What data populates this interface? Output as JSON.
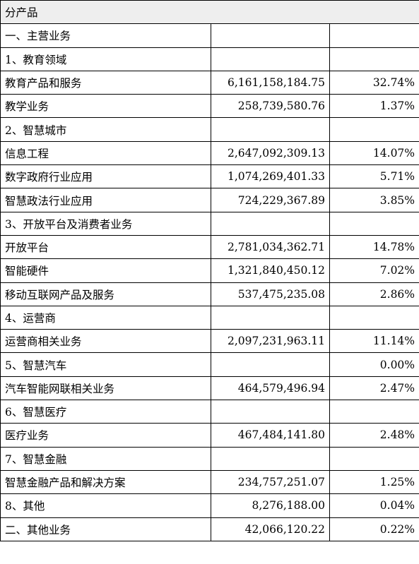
{
  "header": {
    "title": "分产品"
  },
  "rows": [
    {
      "name": "一、主营业务",
      "amount": "",
      "percent": ""
    },
    {
      "name": "1、教育领域",
      "amount": "",
      "percent": ""
    },
    {
      "name": "教育产品和服务",
      "amount": "6,161,158,184.75",
      "percent": "32.74%"
    },
    {
      "name": "教学业务",
      "amount": "258,739,580.76",
      "percent": "1.37%"
    },
    {
      "name": "2、智慧城市",
      "amount": "",
      "percent": ""
    },
    {
      "name": "信息工程",
      "amount": "2,647,092,309.13",
      "percent": "14.07%"
    },
    {
      "name": "数字政府行业应用",
      "amount": "1,074,269,401.33",
      "percent": "5.71%"
    },
    {
      "name": "智慧政法行业应用",
      "amount": "724,229,367.89",
      "percent": "3.85%"
    },
    {
      "name": "3、开放平台及消费者业务",
      "amount": "",
      "percent": ""
    },
    {
      "name": "开放平台",
      "amount": "2,781,034,362.71",
      "percent": "14.78%"
    },
    {
      "name": "智能硬件",
      "amount": "1,321,840,450.12",
      "percent": "7.02%"
    },
    {
      "name": "移动互联网产品及服务",
      "amount": "537,475,235.08",
      "percent": "2.86%"
    },
    {
      "name": "4、运营商",
      "amount": "",
      "percent": ""
    },
    {
      "name": "运营商相关业务",
      "amount": "2,097,231,963.11",
      "percent": "11.14%"
    },
    {
      "name": "5、智慧汽车",
      "amount": "",
      "percent": "0.00%"
    },
    {
      "name": "汽车智能网联相关业务",
      "amount": "464,579,496.94",
      "percent": "2.47%"
    },
    {
      "name": "6、智慧医疗",
      "amount": "",
      "percent": ""
    },
    {
      "name": "医疗业务",
      "amount": "467,484,141.80",
      "percent": "2.48%"
    },
    {
      "name": "7、智慧金融",
      "amount": "",
      "percent": ""
    },
    {
      "name": "智慧金融产品和解决方案",
      "amount": "234,757,251.07",
      "percent": "1.25%"
    },
    {
      "name": "8、其他",
      "amount": "8,276,188.00",
      "percent": "0.04%"
    },
    {
      "name": "二、其他业务",
      "amount": "42,066,120.22",
      "percent": "0.22%"
    }
  ]
}
